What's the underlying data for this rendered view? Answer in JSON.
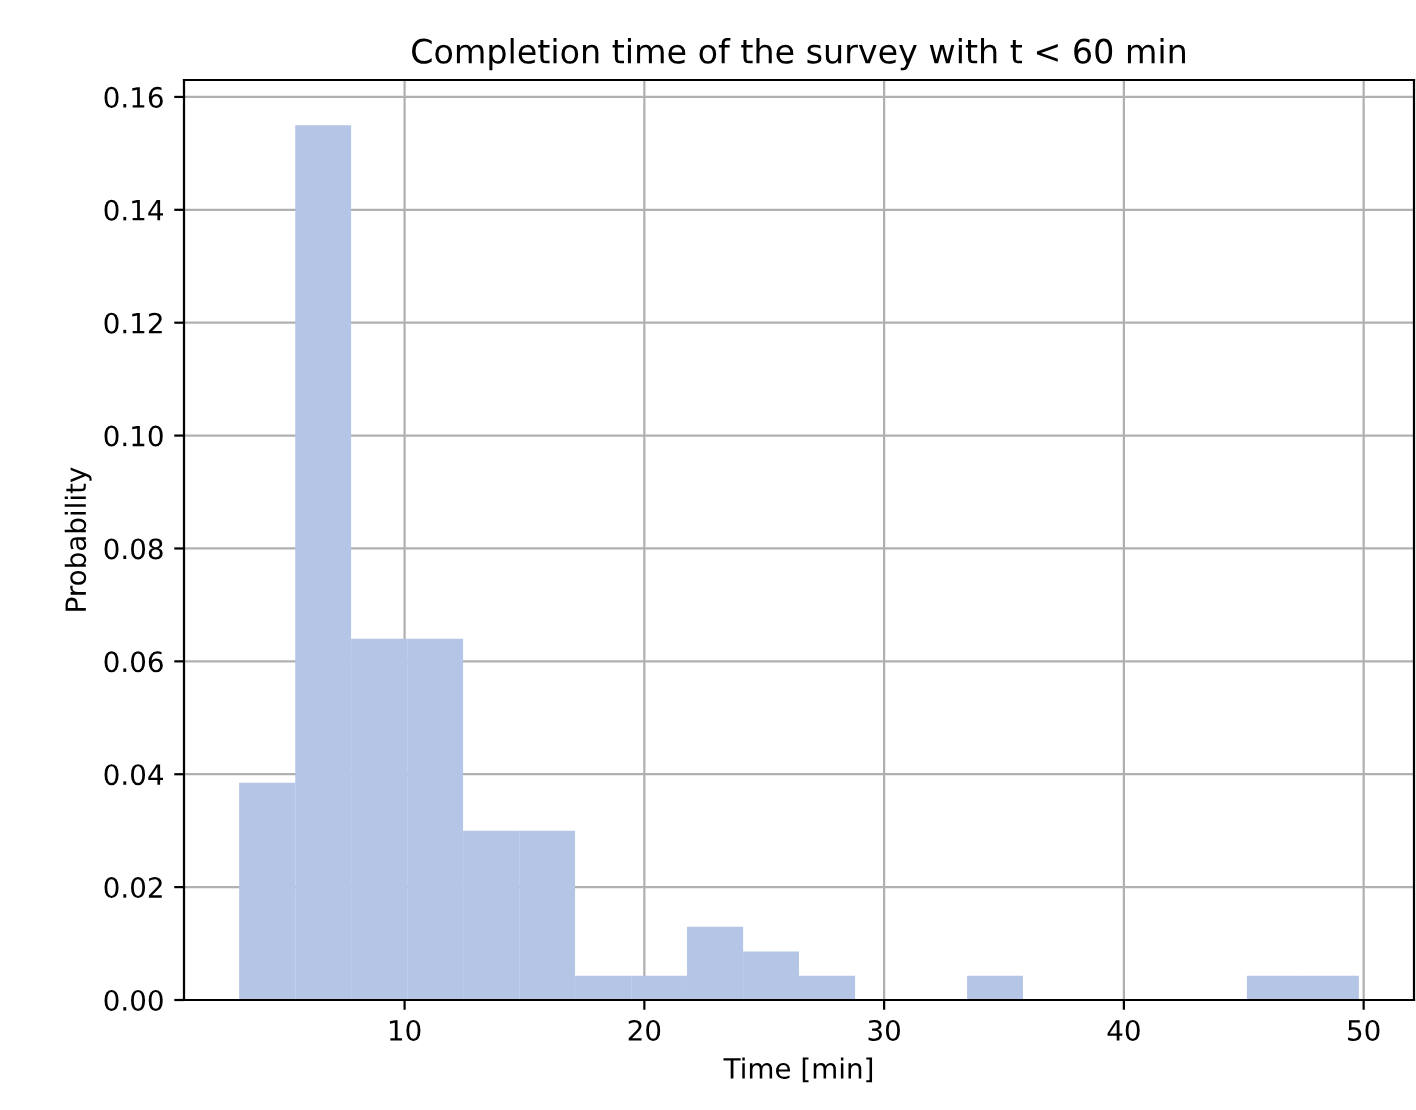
{
  "chart_data": {
    "type": "histogram",
    "title": "Completion time of the survey with t < 60 min",
    "xlabel": "Time [min]",
    "ylabel": "Probability",
    "bins": [
      3.1,
      5.44,
      7.77,
      10.11,
      12.44,
      14.78,
      17.11,
      19.45,
      21.78,
      24.12,
      26.45,
      28.79,
      31.12,
      33.46,
      35.79,
      38.13,
      40.46,
      42.8,
      45.13,
      47.47,
      49.8
    ],
    "values": [
      0.0385,
      0.155,
      0.064,
      0.064,
      0.03,
      0.03,
      0.0043,
      0.0043,
      0.013,
      0.0086,
      0.0043,
      0,
      0,
      0.0043,
      0,
      0,
      0,
      0,
      0.0043,
      0.0043
    ],
    "color": "#b4c5e6",
    "xlim": [
      0.8,
      52.1
    ],
    "ylim": [
      0,
      0.163
    ],
    "xticks": [
      10,
      20,
      30,
      40,
      50
    ],
    "yticks": [
      {
        "value": 0,
        "label": "0.00"
      },
      {
        "value": 0.02,
        "label": "0.02"
      },
      {
        "value": 0.04,
        "label": "0.04"
      },
      {
        "value": 0.06,
        "label": "0.06"
      },
      {
        "value": 0.08,
        "label": "0.08"
      },
      {
        "value": 0.1,
        "label": "0.10"
      },
      {
        "value": 0.12,
        "label": "0.12"
      },
      {
        "value": 0.14,
        "label": "0.14"
      },
      {
        "value": 0.16,
        "label": "0.16"
      }
    ],
    "grid": true
  }
}
